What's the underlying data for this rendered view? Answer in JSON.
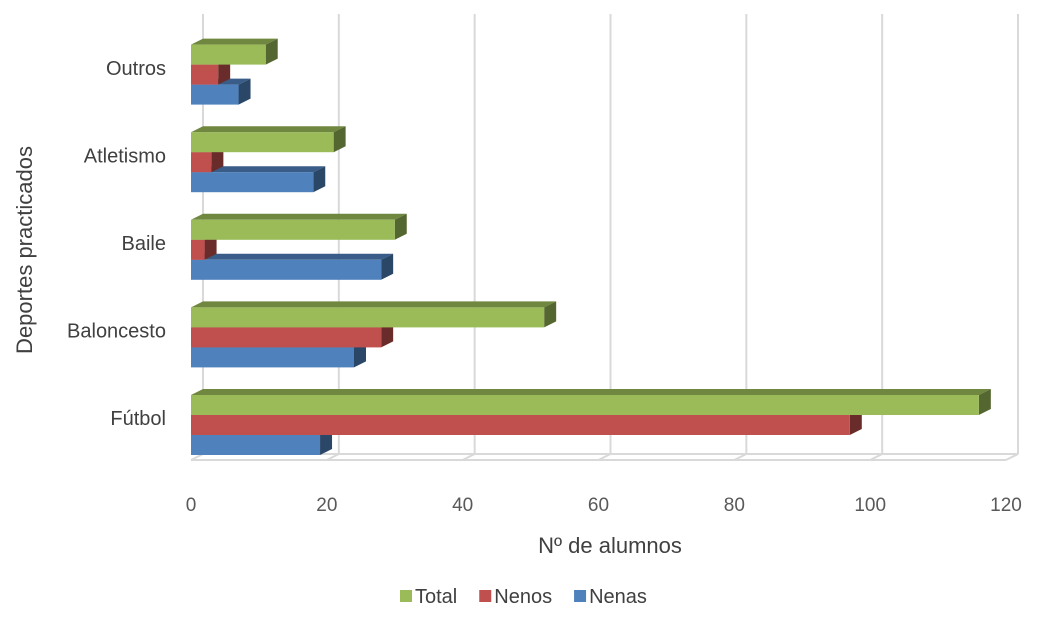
{
  "chart_data": {
    "type": "bar",
    "orientation": "horizontal",
    "style": "3d-clustered",
    "categories": [
      "Fútbol",
      "Baloncesto",
      "Baile",
      "Atletismo",
      "Outros"
    ],
    "series": [
      {
        "name": "Nenas",
        "color": "#4F81BD",
        "values": [
          19,
          24,
          28,
          18,
          7
        ]
      },
      {
        "name": "Nenos",
        "color": "#C0504D",
        "values": [
          97,
          28,
          2,
          3,
          4
        ]
      },
      {
        "name": "Total",
        "color": "#9BBB59",
        "values": [
          116,
          52,
          30,
          21,
          11
        ]
      }
    ],
    "xlabel": "Nº de alumnos",
    "ylabel": "Deportes practicados",
    "xlim": [
      0,
      120
    ],
    "xticks": [
      "0",
      "20",
      "40",
      "60",
      "80",
      "100",
      "120"
    ],
    "grid": true,
    "legend": {
      "position": "bottom",
      "order": [
        "Total",
        "Nenos",
        "Nenas"
      ]
    }
  }
}
